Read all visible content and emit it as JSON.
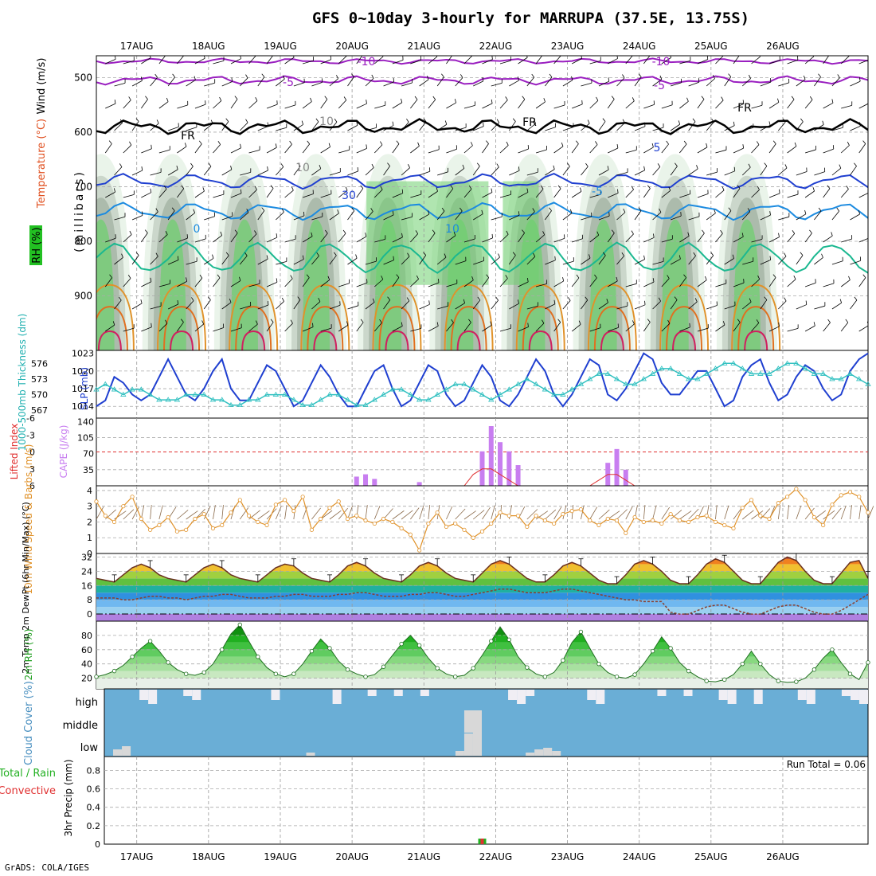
{
  "title": "GFS 0~10day 3-hourly for MARRUPA (37.5E, 13.75S)",
  "credit": "GrADS: COLA/IGES",
  "dates": [
    "17AUG",
    "18AUG",
    "19AUG",
    "20AUG",
    "21AUG",
    "22AUG",
    "23AUG",
    "24AUG",
    "25AUG",
    "26AUG"
  ],
  "colors": {
    "purple": "#9a1fc0",
    "black": "#000000",
    "blue": "#1f3fd0",
    "lightblue": "#1c8be0",
    "teal": "#1bb890",
    "orange": "#e0922a",
    "red": "#d02060",
    "cape": "#c87ef0",
    "li": "#e03030",
    "wind": "#e0922a",
    "rh": "#22b022",
    "cloud": "#6aaed6",
    "gray": "#d8d8d8"
  },
  "panels": {
    "upper": {
      "ylabels": [
        "Wind (m/s)",
        "Temperature (°C)",
        "RH (%)",
        "(millibars)"
      ],
      "yticks": [
        "500",
        "600",
        "700",
        "800",
        "900"
      ],
      "contour_labels": [
        "-10",
        "-10",
        "-5",
        "-5",
        "FR",
        "FR",
        "FR",
        "5",
        "10",
        "30",
        "-5",
        "0",
        "10",
        "10"
      ]
    },
    "pressure": {
      "ylabel_left": "1000-500mb Thickness (dm)",
      "ylabel_right": "SLP (mb)",
      "left_ticks": [
        "576",
        "573",
        "570",
        "567"
      ],
      "right_ticks": [
        "1023",
        "1020",
        "1017",
        "1014"
      ]
    },
    "cape": {
      "ylabel_left": "Lifted Index",
      "ylabel_right": "CAPE (J/kg)",
      "left_ticks": [
        "-6",
        "-3",
        "0",
        "3",
        "6"
      ],
      "right_ticks": [
        "140",
        "105",
        "70",
        "35"
      ]
    },
    "wind": {
      "ylabel": "10m Wind Speed & Barbs (m/s)",
      "yticks": [
        "4",
        "3",
        "2",
        "1",
        "0"
      ]
    },
    "temp": {
      "ylabel": "2m Temp 2m DewPt (6hr Min/Max) (°C)",
      "yticks": [
        "32",
        "24",
        "16",
        "8",
        "0"
      ]
    },
    "rh": {
      "ylabel": "2m RH (%)",
      "yticks": [
        "80",
        "60",
        "40",
        "20"
      ]
    },
    "cloud": {
      "ylabel": "Cloud Cover (%)",
      "levels": [
        "high",
        "middle",
        "low"
      ]
    },
    "precip": {
      "ylabel_main": "3hr Precip (mm)",
      "ylabel_total": "Total / Rain",
      "ylabel_conv": "Convective",
      "yticks": [
        "0.8",
        "0.6",
        "0.4",
        "0.2",
        "0"
      ],
      "run_total": "Run Total = 0.06"
    }
  },
  "chart_data": {
    "type": "line",
    "x_axis": "date",
    "series": [
      {
        "name": "SLP (mb)",
        "values": [
          1014,
          1015,
          1019,
          1018,
          1016,
          1015,
          1016,
          1019,
          1022,
          1019,
          1016,
          1015,
          1017,
          1020,
          1022,
          1017,
          1015,
          1015,
          1018,
          1021,
          1020,
          1017,
          1014,
          1015,
          1018,
          1021,
          1019,
          1016,
          1014,
          1014,
          1017,
          1020,
          1021,
          1017,
          1014,
          1015,
          1018,
          1021,
          1020,
          1016,
          1014,
          1015,
          1018,
          1021,
          1019,
          1015,
          1014,
          1016,
          1019,
          1022,
          1020,
          1016,
          1014,
          1016,
          1019,
          1022,
          1021,
          1016,
          1015,
          1017,
          1020,
          1023,
          1022,
          1018,
          1016,
          1016,
          1018,
          1020,
          1020,
          1017,
          1014,
          1015,
          1019,
          1021,
          1022,
          1018,
          1015,
          1016,
          1019,
          1021,
          1020,
          1017,
          1015,
          1016,
          1020,
          1022,
          1023
        ]
      },
      {
        "name": "1000-500mb Thickness (dm)",
        "values": [
          571,
          572,
          571,
          570,
          571,
          571,
          570,
          569,
          569,
          569,
          570,
          570,
          570,
          569,
          569,
          568,
          568,
          569,
          569,
          570,
          570,
          570,
          569,
          568,
          568,
          569,
          570,
          570,
          569,
          568,
          568,
          569,
          570,
          571,
          571,
          570,
          569,
          569,
          570,
          571,
          572,
          572,
          571,
          570,
          569,
          570,
          571,
          572,
          573,
          572,
          571,
          570,
          570,
          571,
          572,
          573,
          574,
          574,
          573,
          572,
          572,
          573,
          574,
          575,
          575,
          574,
          573,
          573,
          574,
          575,
          576,
          576,
          575,
          574,
          574,
          574,
          575,
          576,
          576,
          575,
          574,
          574,
          573,
          573,
          574,
          573,
          572
        ]
      },
      {
        "name": "CAPE (J/kg)",
        "values": [
          0,
          0,
          0,
          0,
          0,
          0,
          0,
          0,
          0,
          0,
          0,
          0,
          0,
          0,
          0,
          0,
          0,
          0,
          0,
          0,
          0,
          0,
          0,
          0,
          0,
          0,
          0,
          0,
          0,
          20,
          25,
          15,
          0,
          0,
          0,
          0,
          8,
          0,
          0,
          0,
          0,
          0,
          0,
          75,
          130,
          95,
          75,
          45,
          0,
          0,
          0,
          0,
          0,
          0,
          0,
          0,
          0,
          50,
          80,
          35,
          0,
          0,
          0,
          0,
          0,
          0,
          0,
          0,
          0,
          0,
          0,
          0,
          0,
          0,
          0,
          0,
          0,
          0,
          0,
          0,
          0,
          0,
          0,
          0,
          0,
          0,
          0
        ]
      },
      {
        "name": "Lifted Index",
        "values": [
          6,
          6,
          6,
          6,
          6,
          6,
          6,
          6,
          6,
          6,
          6,
          6,
          6,
          6,
          6,
          6,
          6,
          6,
          6,
          6,
          6,
          6,
          6,
          6,
          6,
          6,
          6,
          6,
          6,
          6,
          6,
          6,
          6,
          6,
          6,
          6,
          6,
          6,
          6,
          6,
          6,
          6,
          4,
          3,
          3,
          4,
          5,
          6,
          6,
          6,
          6,
          6,
          6,
          6,
          6,
          6,
          5,
          4,
          4,
          5,
          6,
          6,
          6,
          6,
          6,
          6,
          6,
          6,
          6,
          6,
          6,
          6,
          6,
          6,
          6,
          6,
          6,
          6,
          6,
          6,
          6,
          6,
          6,
          6,
          6,
          6,
          6
        ]
      },
      {
        "name": "10m Wind Speed (m/s)",
        "values": [
          3.3,
          2.4,
          2.0,
          3.0,
          3.6,
          2.2,
          1.5,
          1.8,
          2.3,
          1.4,
          1.5,
          2.2,
          2.5,
          1.6,
          1.8,
          2.6,
          3.4,
          2.4,
          2.0,
          1.8,
          3.1,
          3.4,
          2.7,
          3.6,
          1.5,
          2.2,
          2.9,
          3.3,
          2.2,
          2.4,
          2.1,
          1.9,
          2.2,
          2.0,
          1.6,
          1.2,
          0.2,
          1.9,
          2.6,
          1.7,
          1.9,
          1.5,
          1.0,
          1.4,
          1.9,
          2.6,
          2.4,
          2.4,
          1.7,
          2.4,
          2.1,
          1.9,
          2.5,
          2.7,
          2.8,
          2.1,
          1.8,
          2.2,
          2.1,
          1.3,
          2.3,
          2.0,
          2.1,
          1.9,
          2.5,
          2.1,
          2.0,
          2.3,
          2.4,
          2.0,
          1.8,
          1.6,
          2.9,
          3.4,
          2.4,
          2.2,
          3.2,
          3.6,
          4.1,
          3.4,
          2.3,
          1.8,
          3.1,
          3.7,
          3.9,
          3.6,
          2.6
        ]
      },
      {
        "name": "2m Temp (°C)",
        "values": [
          20,
          19,
          18,
          22,
          26,
          28,
          26,
          22,
          20,
          19,
          18,
          22,
          26,
          28,
          26,
          22,
          20,
          19,
          18,
          22,
          26,
          28,
          27,
          23,
          20,
          19,
          18,
          22,
          27,
          29,
          27,
          23,
          20,
          19,
          18,
          22,
          27,
          29,
          27,
          23,
          20,
          19,
          18,
          23,
          28,
          30,
          28,
          24,
          20,
          18,
          18,
          22,
          27,
          29,
          27,
          23,
          19,
          17,
          17,
          22,
          28,
          30,
          28,
          24,
          19,
          17,
          17,
          22,
          28,
          31,
          29,
          24,
          19,
          17,
          17,
          23,
          29,
          32,
          30,
          24,
          19,
          17,
          17,
          23,
          29,
          30,
          20
        ]
      },
      {
        "name": "2m DewPt (°C)",
        "values": [
          9,
          9,
          9,
          8,
          8,
          9,
          10,
          10,
          9,
          9,
          8,
          9,
          10,
          10,
          11,
          11,
          10,
          9,
          9,
          9,
          10,
          10,
          11,
          11,
          10,
          10,
          10,
          11,
          11,
          12,
          12,
          11,
          10,
          10,
          10,
          11,
          11,
          12,
          12,
          11,
          10,
          10,
          11,
          12,
          13,
          14,
          14,
          13,
          12,
          12,
          12,
          13,
          14,
          14,
          13,
          12,
          11,
          10,
          9,
          8,
          8,
          7,
          7,
          7,
          1,
          0,
          0,
          2,
          4,
          5,
          5,
          3,
          1,
          0,
          0,
          2,
          4,
          5,
          5,
          3,
          1,
          0,
          0,
          2,
          5,
          8,
          11
        ]
      },
      {
        "name": "2m RH (%)",
        "values": [
          22,
          25,
          30,
          38,
          50,
          62,
          72,
          58,
          42,
          32,
          26,
          24,
          28,
          40,
          60,
          82,
          95,
          72,
          50,
          35,
          26,
          22,
          26,
          40,
          58,
          75,
          62,
          44,
          32,
          26,
          22,
          25,
          36,
          52,
          68,
          80,
          66,
          48,
          34,
          26,
          22,
          24,
          34,
          52,
          72,
          92,
          74,
          50,
          35,
          26,
          22,
          28,
          45,
          70,
          85,
          62,
          40,
          28,
          22,
          20,
          25,
          40,
          58,
          78,
          62,
          42,
          30,
          22,
          16,
          15,
          18,
          25,
          40,
          58,
          40,
          25,
          16,
          14,
          15,
          20,
          32,
          48,
          60,
          42,
          26,
          18,
          42
        ]
      },
      {
        "name": "3hr Precip Total/Rain (mm)",
        "values": [
          0,
          0,
          0,
          0,
          0,
          0,
          0,
          0,
          0,
          0,
          0,
          0,
          0,
          0,
          0,
          0,
          0,
          0,
          0,
          0,
          0,
          0,
          0,
          0,
          0,
          0,
          0,
          0,
          0,
          0,
          0,
          0,
          0,
          0,
          0,
          0,
          0,
          0,
          0,
          0,
          0,
          0,
          0,
          0.06,
          0,
          0,
          0,
          0,
          0,
          0,
          0,
          0,
          0,
          0,
          0,
          0,
          0,
          0,
          0,
          0,
          0,
          0,
          0,
          0,
          0,
          0,
          0,
          0,
          0,
          0,
          0,
          0,
          0,
          0,
          0,
          0,
          0,
          0,
          0,
          0,
          0,
          0,
          0,
          0,
          0,
          0,
          0
        ]
      }
    ]
  }
}
